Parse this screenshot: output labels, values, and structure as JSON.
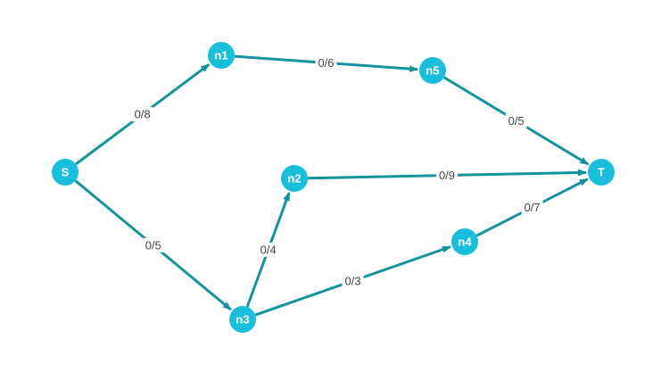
{
  "colors": {
    "node_fill": "#19bfda",
    "edge_stroke": "#14939f",
    "edge_label_text": "#444444"
  },
  "nodes": [
    {
      "id": "S",
      "label": "S"
    },
    {
      "id": "n1",
      "label": "n1"
    },
    {
      "id": "n2",
      "label": "n2"
    },
    {
      "id": "n3",
      "label": "n3"
    },
    {
      "id": "n4",
      "label": "n4"
    },
    {
      "id": "n5",
      "label": "n5"
    },
    {
      "id": "T",
      "label": "T"
    }
  ],
  "edges": [
    {
      "from": "S",
      "to": "n1",
      "label": "0/8"
    },
    {
      "from": "S",
      "to": "n3",
      "label": "0/5"
    },
    {
      "from": "n1",
      "to": "n5",
      "label": "0/6"
    },
    {
      "from": "n5",
      "to": "T",
      "label": "0/5"
    },
    {
      "from": "n2",
      "to": "T",
      "label": "0/9"
    },
    {
      "from": "n3",
      "to": "n2",
      "label": "0/4"
    },
    {
      "from": "n3",
      "to": "n4",
      "label": "0/3"
    },
    {
      "from": "n4",
      "to": "T",
      "label": "0/7"
    }
  ]
}
